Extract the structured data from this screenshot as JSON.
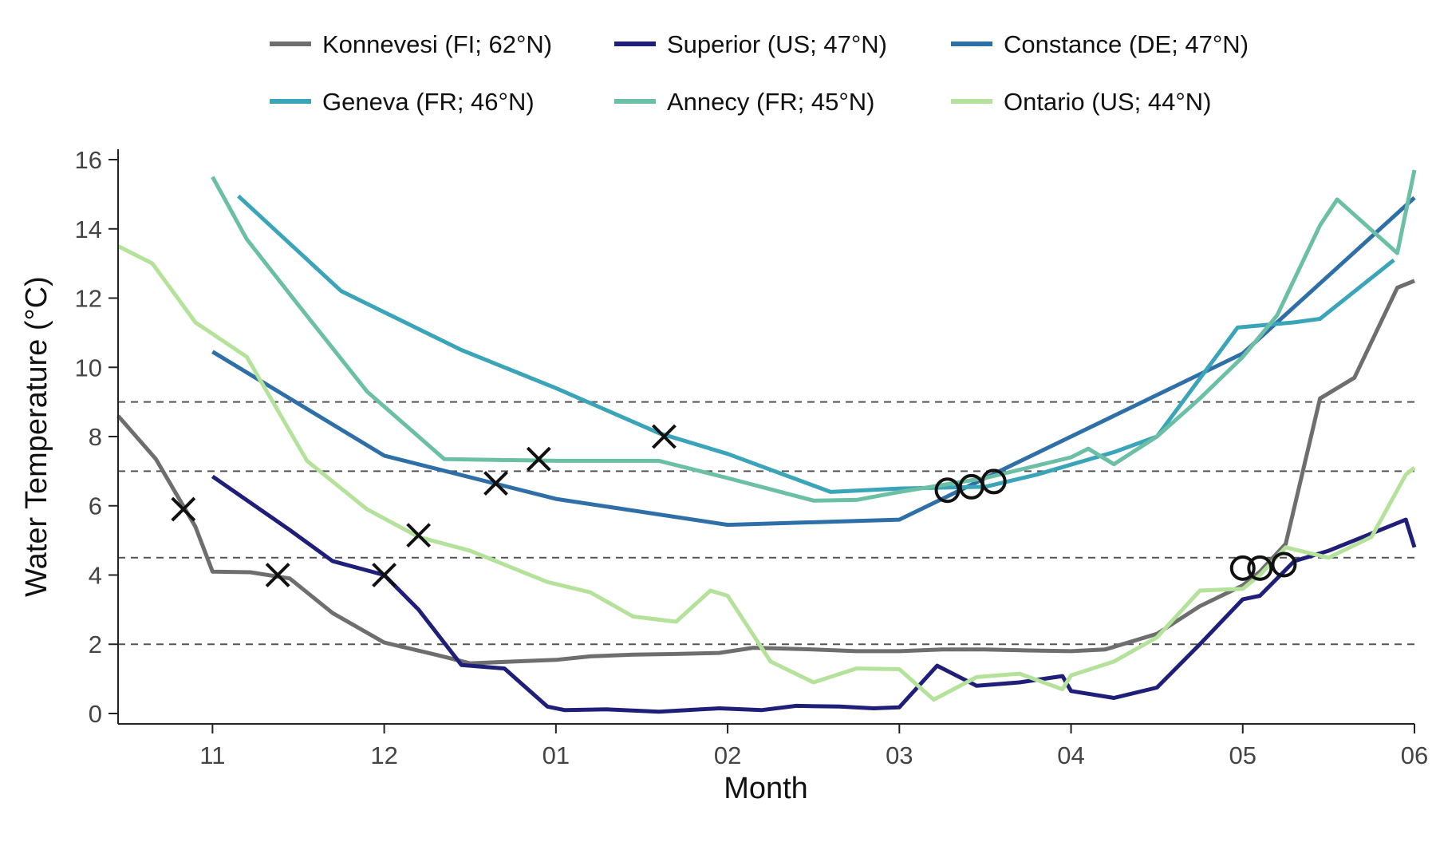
{
  "chart_data": {
    "type": "line",
    "title": "",
    "xlabel": "Month",
    "ylabel": "Water Temperature (°C)",
    "x_tick_labels": [
      "11",
      "12",
      "01",
      "02",
      "03",
      "04",
      "05",
      "06"
    ],
    "x_range_months": [
      -0.55,
      7
    ],
    "ylim": [
      -0.3,
      16.3
    ],
    "y_ticks": [
      0,
      2,
      4,
      6,
      8,
      10,
      12,
      14,
      16
    ],
    "y_tick_labels": [
      "0",
      "2",
      "4",
      "6",
      "8",
      "10",
      "12",
      "14",
      "16"
    ],
    "reference_lines": [
      2,
      4.5,
      7,
      9
    ],
    "grid": false,
    "legend_position": "top",
    "x_unit_note": "x in months since start of November (0 = 11, 1 = 12, 2 = 01, ..., 7 = 06)",
    "series": [
      {
        "name": "Konnevesi (FI; 62°N)",
        "color": "#6e6e6e",
        "points": [
          [
            -0.55,
            8.6
          ],
          [
            -0.33,
            7.35
          ],
          [
            -0.1,
            5.4
          ],
          [
            0,
            4.1
          ],
          [
            0.22,
            4.08
          ],
          [
            0.45,
            3.9
          ],
          [
            0.7,
            2.9
          ],
          [
            1.0,
            2.05
          ],
          [
            1.3,
            1.7
          ],
          [
            1.5,
            1.45
          ],
          [
            1.75,
            1.5
          ],
          [
            2.0,
            1.55
          ],
          [
            2.2,
            1.65
          ],
          [
            2.45,
            1.7
          ],
          [
            2.7,
            1.72
          ],
          [
            2.95,
            1.75
          ],
          [
            3.15,
            1.9
          ],
          [
            3.5,
            1.85
          ],
          [
            3.75,
            1.8
          ],
          [
            4.0,
            1.8
          ],
          [
            4.25,
            1.85
          ],
          [
            4.5,
            1.85
          ],
          [
            4.75,
            1.82
          ],
          [
            5.0,
            1.8
          ],
          [
            5.2,
            1.85
          ],
          [
            5.5,
            2.3
          ],
          [
            5.75,
            3.1
          ],
          [
            6.0,
            3.7
          ],
          [
            6.1,
            4.1
          ],
          [
            6.25,
            4.9
          ],
          [
            6.45,
            9.1
          ],
          [
            6.65,
            9.7
          ],
          [
            6.9,
            12.3
          ],
          [
            7.0,
            12.5
          ]
        ]
      },
      {
        "name": "Superior (US; 47°N)",
        "color": "#1f1f7a",
        "points": [
          [
            0,
            6.85
          ],
          [
            0.45,
            5.3
          ],
          [
            0.7,
            4.4
          ],
          [
            1.0,
            4.0
          ],
          [
            1.2,
            3.0
          ],
          [
            1.45,
            1.4
          ],
          [
            1.7,
            1.3
          ],
          [
            1.95,
            0.2
          ],
          [
            2.05,
            0.1
          ],
          [
            2.3,
            0.12
          ],
          [
            2.6,
            0.05
          ],
          [
            2.95,
            0.15
          ],
          [
            3.2,
            0.1
          ],
          [
            3.4,
            0.22
          ],
          [
            3.65,
            0.2
          ],
          [
            3.85,
            0.15
          ],
          [
            4.0,
            0.18
          ],
          [
            4.22,
            1.38
          ],
          [
            4.45,
            0.8
          ],
          [
            4.7,
            0.9
          ],
          [
            4.95,
            1.08
          ],
          [
            5.0,
            0.65
          ],
          [
            5.25,
            0.45
          ],
          [
            5.5,
            0.75
          ],
          [
            5.75,
            2.0
          ],
          [
            6.0,
            3.3
          ],
          [
            6.1,
            3.4
          ],
          [
            6.3,
            4.4
          ],
          [
            6.5,
            4.7
          ],
          [
            6.75,
            5.2
          ],
          [
            6.95,
            5.6
          ],
          [
            7.0,
            4.8
          ]
        ]
      },
      {
        "name": "Constance (DE; 47°N)",
        "color": "#2f6fa8",
        "points": [
          [
            0,
            10.45
          ],
          [
            1.0,
            7.45
          ],
          [
            2.0,
            6.2
          ],
          [
            3.0,
            5.45
          ],
          [
            4.0,
            5.6
          ],
          [
            5.0,
            8.0
          ],
          [
            6.0,
            10.4
          ],
          [
            7.0,
            14.9
          ]
        ]
      },
      {
        "name": "Geneva (FR; 46°N)",
        "color": "#3aa4b8",
        "points": [
          [
            0.15,
            14.95
          ],
          [
            0.75,
            12.2
          ],
          [
            1.45,
            10.5
          ],
          [
            2.0,
            9.4
          ],
          [
            2.6,
            8.1
          ],
          [
            3.0,
            7.5
          ],
          [
            3.6,
            6.4
          ],
          [
            4.0,
            6.5
          ],
          [
            4.5,
            6.55
          ],
          [
            4.8,
            6.9
          ],
          [
            5.25,
            7.55
          ],
          [
            5.5,
            8.0
          ],
          [
            5.97,
            11.15
          ],
          [
            6.3,
            11.3
          ],
          [
            6.45,
            11.4
          ],
          [
            6.88,
            13.1
          ]
        ]
      },
      {
        "name": "Annecy (FR; 45°N)",
        "color": "#6bbfa5",
        "points": [
          [
            0,
            15.5
          ],
          [
            0.2,
            13.7
          ],
          [
            0.5,
            11.8
          ],
          [
            0.9,
            9.3
          ],
          [
            1.35,
            7.35
          ],
          [
            2.0,
            7.3
          ],
          [
            2.6,
            7.3
          ],
          [
            3.0,
            6.8
          ],
          [
            3.5,
            6.15
          ],
          [
            3.75,
            6.17
          ],
          [
            4.0,
            6.4
          ],
          [
            4.5,
            6.8
          ],
          [
            5.0,
            7.4
          ],
          [
            5.1,
            7.65
          ],
          [
            5.25,
            7.2
          ],
          [
            5.5,
            8.0
          ],
          [
            5.75,
            9.1
          ],
          [
            6.0,
            10.3
          ],
          [
            6.2,
            11.5
          ],
          [
            6.45,
            14.1
          ],
          [
            6.55,
            14.85
          ],
          [
            6.9,
            13.3
          ],
          [
            7.0,
            15.7
          ]
        ]
      },
      {
        "name": "Ontario (US; 44°N)",
        "color": "#b5e29a",
        "points": [
          [
            -0.55,
            13.5
          ],
          [
            -0.35,
            13.0
          ],
          [
            -0.1,
            11.3
          ],
          [
            0.2,
            10.3
          ],
          [
            0.55,
            7.3
          ],
          [
            0.9,
            5.9
          ],
          [
            1.2,
            5.1
          ],
          [
            1.5,
            4.7
          ],
          [
            1.75,
            4.2
          ],
          [
            1.95,
            3.8
          ],
          [
            2.2,
            3.5
          ],
          [
            2.45,
            2.8
          ],
          [
            2.7,
            2.65
          ],
          [
            2.9,
            3.55
          ],
          [
            3.0,
            3.4
          ],
          [
            3.25,
            1.5
          ],
          [
            3.5,
            0.9
          ],
          [
            3.75,
            1.3
          ],
          [
            4.0,
            1.28
          ],
          [
            4.2,
            0.4
          ],
          [
            4.45,
            1.05
          ],
          [
            4.7,
            1.15
          ],
          [
            4.95,
            0.7
          ],
          [
            5.0,
            1.1
          ],
          [
            5.25,
            1.5
          ],
          [
            5.5,
            2.2
          ],
          [
            5.75,
            3.55
          ],
          [
            6.0,
            3.6
          ],
          [
            6.1,
            4.0
          ],
          [
            6.25,
            4.8
          ],
          [
            6.5,
            4.5
          ],
          [
            6.75,
            5.1
          ],
          [
            6.95,
            6.9
          ],
          [
            7.0,
            7.1
          ]
        ]
      }
    ],
    "cross_markers": [
      [
        -0.17,
        5.9
      ],
      [
        0.38,
        4.0
      ],
      [
        1.0,
        4.0
      ],
      [
        1.2,
        5.15
      ],
      [
        1.65,
        6.65
      ],
      [
        1.9,
        7.35
      ],
      [
        2.63,
        8.0
      ]
    ],
    "circle_markers": [
      [
        4.28,
        6.45
      ],
      [
        4.42,
        6.55
      ],
      [
        4.55,
        6.7
      ],
      [
        6.0,
        4.2
      ],
      [
        6.1,
        4.2
      ],
      [
        6.24,
        4.3
      ]
    ]
  }
}
